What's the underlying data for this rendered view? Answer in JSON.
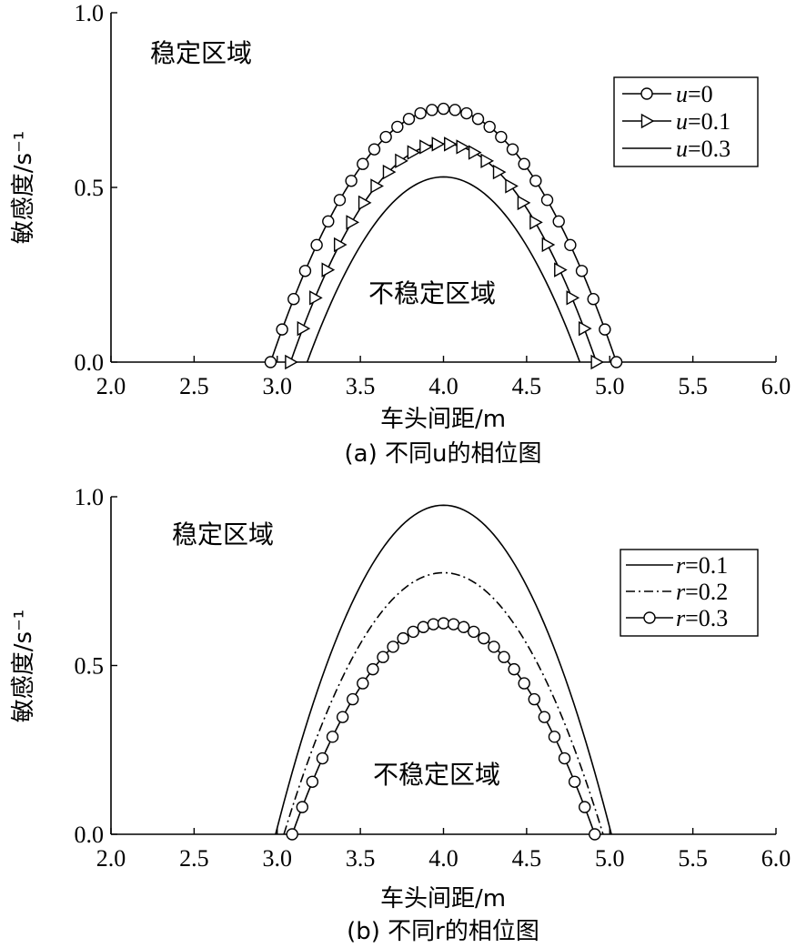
{
  "chart_data": [
    {
      "type": "line",
      "caption": "(a) 不同u的相位图",
      "xlabel": "车头间距/m",
      "ylabel": "敏感度/s⁻¹",
      "xlim": [
        2.0,
        6.0
      ],
      "ylim": [
        0.0,
        1.0
      ],
      "xticks": [
        "2.0",
        "2.5",
        "3.0",
        "3.5",
        "4.0",
        "4.5",
        "5.0",
        "5.5",
        "6.0"
      ],
      "yticks": [
        "0.0",
        "0.5",
        "1.0"
      ],
      "region_labels": {
        "stable": "稳定区域",
        "unstable": "不稳定区域"
      },
      "legend_position": "top-right",
      "series": [
        {
          "name": "u=0",
          "name_var": "u",
          "name_val": "=0",
          "marker": "circle",
          "style": "solid",
          "x_start": 2.96,
          "x_end": 5.04,
          "peak": 0.725
        },
        {
          "name": "u=0.1",
          "name_var": "u",
          "name_val": "=0.1",
          "marker": "triangle-right",
          "style": "solid",
          "x_start": 3.08,
          "x_end": 4.92,
          "peak": 0.625
        },
        {
          "name": "u=0.3",
          "name_var": "u",
          "name_val": "=0.3",
          "marker": "none",
          "style": "solid",
          "x_start": 3.18,
          "x_end": 4.82,
          "peak": 0.53
        }
      ]
    },
    {
      "type": "line",
      "caption": "(b) 不同r的相位图",
      "xlabel": "车头间距/m",
      "ylabel": "敏感度/s⁻¹",
      "xlim": [
        2.0,
        6.0
      ],
      "ylim": [
        0.0,
        1.0
      ],
      "xticks": [
        "2.0",
        "2.5",
        "3.0",
        "3.5",
        "4.0",
        "4.5",
        "5.0",
        "5.5",
        "6.0"
      ],
      "yticks": [
        "0.0",
        "0.5",
        "1.0"
      ],
      "region_labels": {
        "stable": "稳定区域",
        "unstable": "不稳定区域"
      },
      "legend_position": "top-right",
      "series": [
        {
          "name": "r=0.1",
          "name_var": "r",
          "name_val": "=0.1",
          "marker": "none",
          "style": "solid",
          "x_start": 2.99,
          "x_end": 5.01,
          "peak": 0.975
        },
        {
          "name": "r=0.2",
          "name_var": "r",
          "name_val": "=0.2",
          "marker": "none",
          "style": "dashdot",
          "x_start": 3.04,
          "x_end": 4.96,
          "peak": 0.775
        },
        {
          "name": "r=0.3",
          "name_var": "r",
          "name_val": "=0.3",
          "marker": "circle",
          "style": "solid",
          "x_start": 3.09,
          "x_end": 4.91,
          "peak": 0.625
        }
      ]
    }
  ]
}
